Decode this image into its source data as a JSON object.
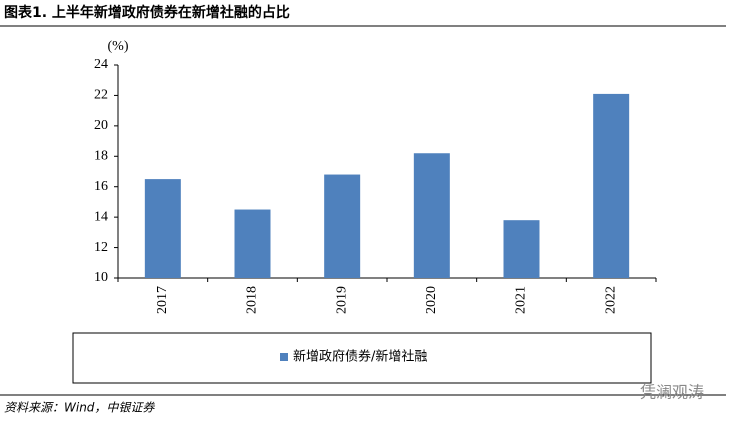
{
  "chart_data": {
    "type": "bar",
    "title": "图表1. 上半年新增政府债券在新增社融的占比",
    "y_label": "(%)",
    "categories": [
      "2017",
      "2018",
      "2019",
      "2020",
      "2021",
      "2022"
    ],
    "series": [
      {
        "name": "新增政府债券/新增社融",
        "color": "#4f81bd",
        "values": [
          16.5,
          14.5,
          16.8,
          18.2,
          13.8,
          22.1
        ]
      }
    ],
    "ylim": [
      10,
      24
    ],
    "yticks": [
      10,
      12,
      14,
      16,
      18,
      20,
      22,
      24
    ],
    "grid": false,
    "legend": "bottom",
    "source": "资料来源：Wind，中银证券",
    "watermark": "凭澜观涛"
  }
}
